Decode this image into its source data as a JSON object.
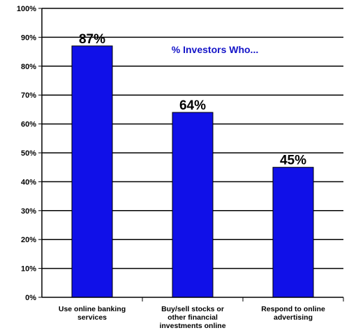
{
  "chart_data": {
    "type": "bar",
    "title": "% Investors Who...",
    "categories": [
      [
        "Use online banking",
        "services"
      ],
      [
        "Buy/sell stocks or",
        "other financial",
        "investments online"
      ],
      [
        "Respond to online",
        "advertising"
      ]
    ],
    "values": [
      87,
      64,
      45
    ],
    "value_labels": [
      "87%",
      "64%",
      "45%"
    ],
    "yticks": [
      "0%",
      "10%",
      "20%",
      "30%",
      "40%",
      "50%",
      "60%",
      "70%",
      "80%",
      "90%",
      "100%"
    ],
    "ylim": [
      0,
      100
    ],
    "grid": true,
    "legend": "none",
    "colors": {
      "bar": "#1010e8",
      "bar_stroke": "#000000",
      "grid": "#000000",
      "title": "#1414c8"
    }
  }
}
